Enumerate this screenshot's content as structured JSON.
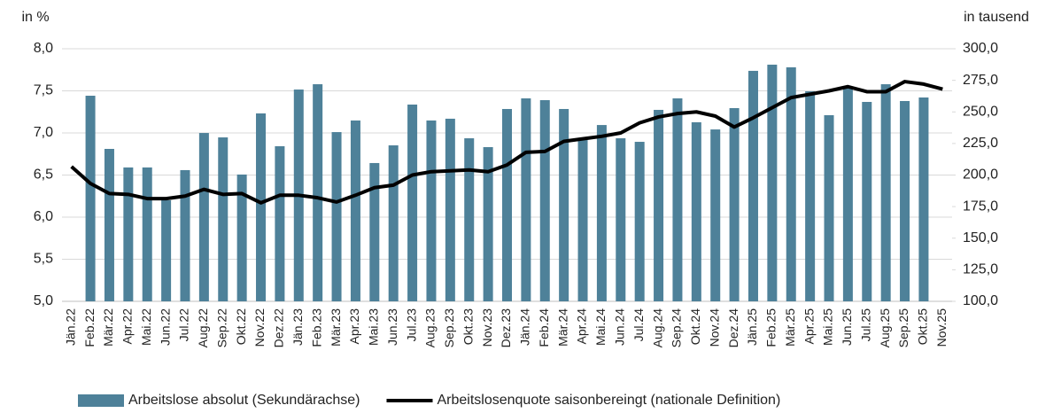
{
  "chart_data": {
    "type": "bar-line",
    "y_label": "in %",
    "y2_label": "in tausend",
    "categories": [
      "Jän.22",
      "Feb.22",
      "Mär.22",
      "Apr.22",
      "Mai.22",
      "Jun.22",
      "Jul.22",
      "Aug.22",
      "Sep.22",
      "Okt.22",
      "Nov.22",
      "Dez.22",
      "Jän.23",
      "Feb.23",
      "Mär.23",
      "Apr.23",
      "Mai.23",
      "Jun.23",
      "Jul.23",
      "Aug.23",
      "Sep.23",
      "Okt.23",
      "Nov.23",
      "Dez.23",
      "Jän.24",
      "Feb.24",
      "Mär.24",
      "Apr.24",
      "Mai.24",
      "Jun.24",
      "Jul.24",
      "Aug.24",
      "Sep.24",
      "Okt.24",
      "Nov.24",
      "Dez.24",
      "Jän.25",
      "Feb.25",
      "Mär.25",
      "Apr.25",
      "Mai.25",
      "Jun.25",
      "Jul.25",
      "Aug.25",
      "Sep.25",
      "Okt.25",
      "Nov.25"
    ],
    "series": [
      {
        "name": "Arbeitslose absolut (Sekundärachse)",
        "type": "bar",
        "axis": "y2",
        "color": "#4e8199",
        "values": [
          null,
          262.8,
          220.7,
          206,
          206,
          180,
          203.9,
          233.3,
          229.8,
          200.4,
          248.8,
          222.8,
          267.7,
          271.9,
          234,
          243.2,
          209.5,
          223.5,
          255.8,
          243.2,
          244.6,
          229.1,
          222.1,
          252.3,
          260.7,
          259.3,
          252.3,
          227.7,
          239.6,
          229.1,
          226.3,
          251.6,
          260.7,
          241.8,
          236.1,
          253,
          282.5,
          287.4,
          285.3,
          266.3,
          247.4,
          269.8,
          257.9,
          271.9,
          258.6,
          261.4,
          null
        ]
      },
      {
        "name": "Arbeitslosenquote saisonbereingt (nationale Definition)",
        "type": "line",
        "color": "#000000",
        "values": [
          6.6,
          6.4,
          6.28,
          6.27,
          6.22,
          6.22,
          6.25,
          6.33,
          6.27,
          6.28,
          6.17,
          6.26,
          6.26,
          6.23,
          6.18,
          6.26,
          6.35,
          6.38,
          6.5,
          6.54,
          6.55,
          6.56,
          6.54,
          6.62,
          6.77,
          6.78,
          6.9,
          6.93,
          6.96,
          7.0,
          7.12,
          7.19,
          7.23,
          7.25,
          7.2,
          7.07,
          7.18,
          7.3,
          7.42,
          7.46,
          7.5,
          7.55,
          7.49,
          7.49,
          7.61,
          7.58,
          7.52
        ]
      }
    ],
    "ylim": [
      5,
      8
    ],
    "yticks": [
      {
        "value": 5,
        "label": "5,0"
      },
      {
        "value": 5.5,
        "label": "5,5"
      },
      {
        "value": 6,
        "label": "6,0"
      },
      {
        "value": 6.5,
        "label": "6,5"
      },
      {
        "value": 7,
        "label": "7,0"
      },
      {
        "value": 7.5,
        "label": "7,5"
      },
      {
        "value": 8,
        "label": "8,0"
      }
    ],
    "y2lim": [
      100,
      300
    ],
    "y2ticks": [
      {
        "value": 100,
        "label": "100,0"
      },
      {
        "value": 125,
        "label": "125,0"
      },
      {
        "value": 150,
        "label": "150,0"
      },
      {
        "value": 175,
        "label": "175,0"
      },
      {
        "value": 200,
        "label": "200,0"
      },
      {
        "value": 225,
        "label": "225,0"
      },
      {
        "value": 250,
        "label": "250,0"
      },
      {
        "value": 275,
        "label": "275,0"
      },
      {
        "value": 300,
        "label": "300,0"
      }
    ],
    "grid": true,
    "legend": "bottom"
  }
}
